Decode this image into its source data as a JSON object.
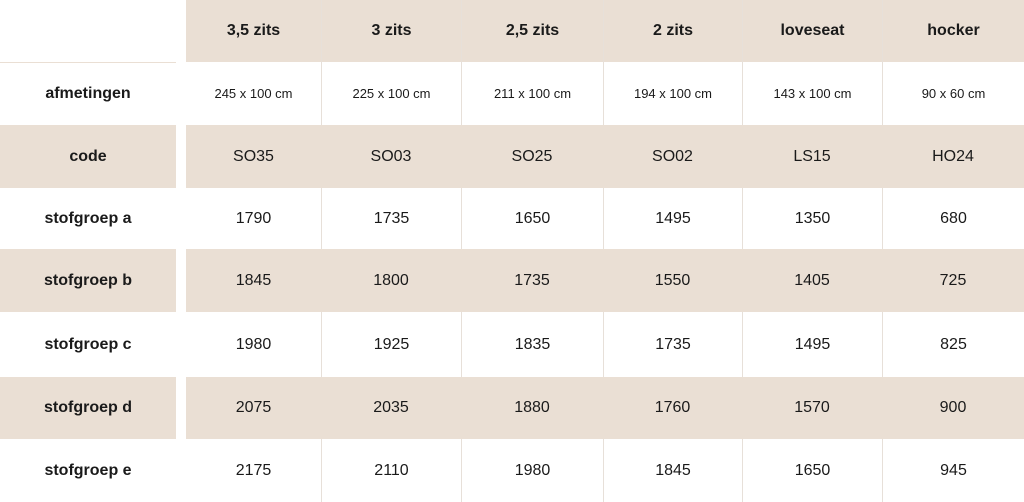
{
  "header": {
    "columns": [
      "3,5 zits",
      "3 zits",
      "2,5 zits",
      "2 zits",
      "loveseat",
      "hocker"
    ]
  },
  "rows": [
    {
      "label": "afmetingen",
      "values": [
        "245 x 100 cm",
        "225 x 100 cm",
        "211 x 100 cm",
        "194 x 100 cm",
        "143 x 100 cm",
        "90 x 60 cm"
      ]
    },
    {
      "label": "code",
      "values": [
        "SO35",
        "SO03",
        "SO25",
        "SO02",
        "LS15",
        "HO24"
      ]
    },
    {
      "label": "stofgroep a",
      "values": [
        "1790",
        "1735",
        "1650",
        "1495",
        "1350",
        "680"
      ]
    },
    {
      "label": "stofgroep b",
      "values": [
        "1845",
        "1800",
        "1735",
        "1550",
        "1405",
        "725"
      ]
    },
    {
      "label": "stofgroep c",
      "values": [
        "1980",
        "1925",
        "1835",
        "1735",
        "1495",
        "825"
      ]
    },
    {
      "label": "stofgroep d",
      "values": [
        "2075",
        "2035",
        "1880",
        "1760",
        "1570",
        "900"
      ]
    },
    {
      "label": "stofgroep e",
      "values": [
        "2175",
        "2110",
        "1980",
        "1845",
        "1650",
        "945"
      ]
    }
  ]
}
